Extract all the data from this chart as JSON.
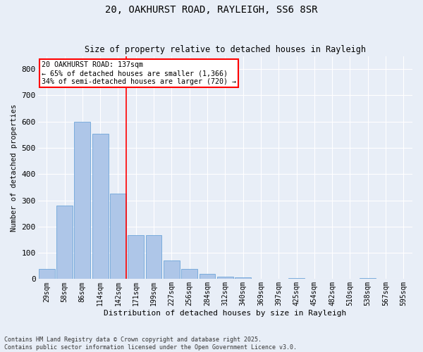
{
  "title_line1": "20, OAKHURST ROAD, RAYLEIGH, SS6 8SR",
  "title_line2": "Size of property relative to detached houses in Rayleigh",
  "xlabel": "Distribution of detached houses by size in Rayleigh",
  "ylabel": "Number of detached properties",
  "bins": [
    "29sqm",
    "58sqm",
    "86sqm",
    "114sqm",
    "142sqm",
    "171sqm",
    "199sqm",
    "227sqm",
    "256sqm",
    "284sqm",
    "312sqm",
    "340sqm",
    "369sqm",
    "397sqm",
    "425sqm",
    "454sqm",
    "482sqm",
    "510sqm",
    "538sqm",
    "567sqm",
    "595sqm"
  ],
  "bar_values": [
    40,
    280,
    600,
    555,
    325,
    167,
    167,
    70,
    40,
    20,
    10,
    7,
    0,
    0,
    5,
    0,
    0,
    0,
    5,
    0,
    0
  ],
  "bar_color": "#aec6e8",
  "bar_edge_color": "#5b9bd5",
  "red_line_bin_index": 4,
  "annotation_text": "20 OAKHURST ROAD: 137sqm\n← 65% of detached houses are smaller (1,366)\n34% of semi-detached houses are larger (720) →",
  "annotation_box_color": "white",
  "annotation_box_edge_color": "red",
  "ylim": [
    0,
    850
  ],
  "yticks": [
    0,
    100,
    200,
    300,
    400,
    500,
    600,
    700,
    800
  ],
  "background_color": "#e8eef7",
  "grid_color": "white",
  "footer_line1": "Contains HM Land Registry data © Crown copyright and database right 2025.",
  "footer_line2": "Contains public sector information licensed under the Open Government Licence v3.0."
}
